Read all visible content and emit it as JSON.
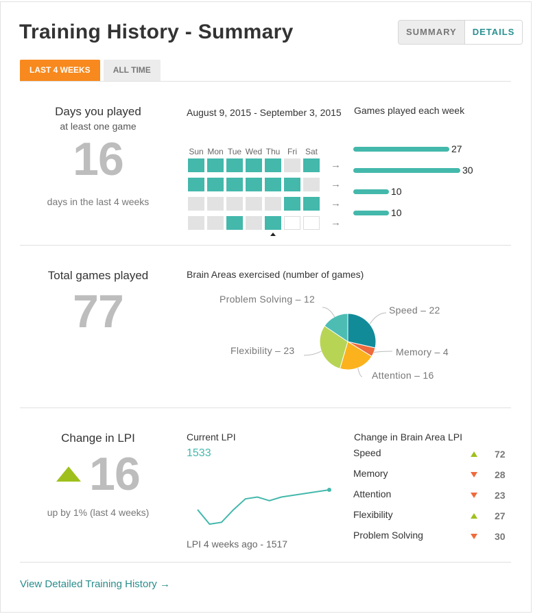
{
  "header": {
    "title": "Training History - Summary",
    "view_toggle": {
      "summary": "SUMMARY",
      "details": "DETAILS",
      "selected": "SUMMARY"
    }
  },
  "range_tabs": [
    {
      "label": "LAST 4 WEEKS",
      "active": true
    },
    {
      "label": "ALL TIME",
      "active": false
    }
  ],
  "days_section": {
    "heading": "Days you played",
    "subheading": "at least one game",
    "count": "16",
    "caption": "days in the last 4 weeks",
    "date_range": "August 9, 2015 - September 3, 2015",
    "weekdays": [
      "Sun",
      "Mon",
      "Tue",
      "Wed",
      "Thu",
      "Fri",
      "Sat"
    ],
    "weeks": [
      [
        "on",
        "on",
        "on",
        "on",
        "on",
        "off",
        "on"
      ],
      [
        "on",
        "on",
        "on",
        "on",
        "on",
        "on",
        "off"
      ],
      [
        "off",
        "off",
        "off",
        "off",
        "off",
        "on",
        "on"
      ],
      [
        "off",
        "off",
        "on",
        "off",
        "on",
        "empty",
        "empty"
      ]
    ],
    "arrow_glyph": "→",
    "games_heading": "Games played each week",
    "games_per_week": [
      27,
      30,
      10,
      10
    ],
    "bar_color": "#43b8ab"
  },
  "games_section": {
    "heading": "Total games played",
    "total": "77",
    "pie_heading": "Brain Areas exercised (number of games)",
    "pie_labels": {
      "speed": "Speed – 22",
      "memory": "Memory – 4",
      "attention": "Attention – 16",
      "flexibility": "Flexibility – 23",
      "problem_solving": "Problem Solving – 12"
    }
  },
  "chart_data": {
    "type": "pie",
    "title": "Brain Areas exercised (number of games)",
    "slices": [
      {
        "label": "Speed",
        "value": 22,
        "color": "#128b99"
      },
      {
        "label": "Memory",
        "value": 4,
        "color": "#ef6a3c"
      },
      {
        "label": "Attention",
        "value": 16,
        "color": "#fbb21d"
      },
      {
        "label": "Flexibility",
        "value": 23,
        "color": "#b8d455"
      },
      {
        "label": "Problem Solving",
        "value": 12,
        "color": "#4dbdb4"
      }
    ]
  },
  "lpi_section": {
    "heading": "Change in LPI",
    "change": "16",
    "direction": "up",
    "caption": "up by 1% (last 4 weeks)",
    "current_label": "Current LPI",
    "current_value": "1533",
    "start_label": "LPI 4 weeks ago - 1517",
    "trend": [
      1522,
      1514,
      1515,
      1522,
      1528,
      1529,
      1527,
      1529,
      1530,
      1531,
      1532,
      1533
    ],
    "trend_color": "#43b8ab",
    "areas_heading": "Change in Brain Area LPI",
    "areas": [
      {
        "name": "Speed",
        "direction": "up",
        "value": "72"
      },
      {
        "name": "Memory",
        "direction": "down",
        "value": "28"
      },
      {
        "name": "Attention",
        "direction": "down",
        "value": "23"
      },
      {
        "name": "Flexibility",
        "direction": "up",
        "value": "27"
      },
      {
        "name": "Problem Solving",
        "direction": "down",
        "value": "30"
      }
    ]
  },
  "footer": {
    "link": "View Detailed Training History →"
  }
}
